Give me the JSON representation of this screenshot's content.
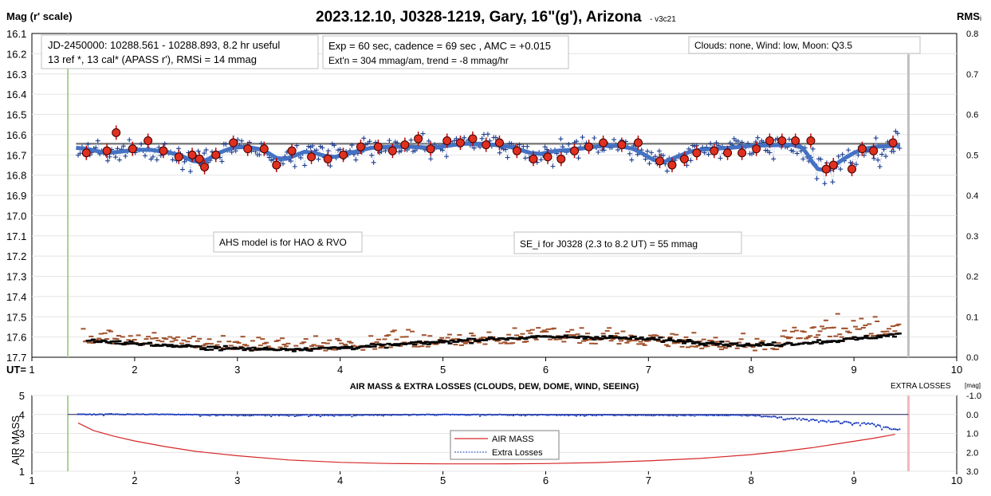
{
  "chart_data": [
    {
      "type": "scatter",
      "title": "2023.12.10, J0328-1219, Gary, 16\"(g'), Arizona",
      "title_suffix": "- v3c21",
      "ylabel": "Mag (r' scale)",
      "y2label": "RMS",
      "y2label_suffix": "i",
      "xlabel_prefix": "UT=",
      "xlim": [
        1,
        10
      ],
      "ylim": [
        16.1,
        17.7
      ],
      "y_reversed": true,
      "y2lim": [
        0.0,
        0.8
      ],
      "x_ticks": [
        "1",
        "2",
        "3",
        "4",
        "5",
        "6",
        "7",
        "8",
        "9",
        "10"
      ],
      "y_ticks": [
        "16.1",
        "16.2",
        "16.3",
        "16.4",
        "16.5",
        "16.6",
        "16.7",
        "16.8",
        "16.9",
        "17.0",
        "17.1",
        "17.2",
        "17.3",
        "17.4",
        "17.5",
        "17.6",
        "17.7"
      ],
      "y2_ticks": [
        "0.8",
        "0.7",
        "0.6",
        "0.5",
        "0.4",
        "0.3",
        "0.2",
        "0.1",
        "0.0"
      ],
      "reference_level": 16.645,
      "observation_start_ut": 1.35,
      "observation_end_ut": 9.53,
      "annotations": {
        "jd": [
          "JD-2450000: 10288.561 - 10288.893, 8.2 hr useful",
          "13 ref *, 13 cal*  (APASS r'), RMSi = 14 mmag"
        ],
        "exposure": [
          "Exp = 60 sec, cadence = 69 sec , AMC = +0.015",
          "Ext'n = 304 mmag/am, trend = -8 mmag/hr"
        ],
        "conditions": "Clouds: none, Wind:  low,  Moon:  Q3.5",
        "model": "AHS model is for HAO & RVO",
        "se": "SE_i for J0328 (2.3 to 8.2 UT) = 55 mmag"
      },
      "series": [
        {
          "kind": "binned_magnitude",
          "x": [
            1.53,
            1.73,
            1.82,
            1.98,
            2.13,
            2.28,
            2.43,
            2.56,
            2.63,
            2.68,
            2.79,
            2.96,
            3.1,
            3.26,
            3.38,
            3.53,
            3.72,
            3.88,
            4.03,
            4.2,
            4.37,
            4.51,
            4.63,
            4.76,
            4.88,
            5.04,
            5.17,
            5.29,
            5.42,
            5.55,
            5.72,
            5.88,
            6.02,
            6.15,
            6.28,
            6.42,
            6.56,
            6.74,
            6.9,
            7.11,
            7.23,
            7.35,
            7.47,
            7.64,
            7.77,
            7.91,
            8.05,
            8.18,
            8.3,
            8.43,
            8.58,
            8.73,
            8.8,
            8.98,
            9.08,
            9.19,
            9.38
          ],
          "y": [
            16.69,
            16.68,
            16.59,
            16.67,
            16.63,
            16.68,
            16.71,
            16.7,
            16.72,
            16.76,
            16.7,
            16.64,
            16.67,
            16.67,
            16.75,
            16.68,
            16.71,
            16.72,
            16.7,
            16.66,
            16.66,
            16.68,
            16.65,
            16.62,
            16.67,
            16.63,
            16.64,
            16.62,
            16.65,
            16.64,
            16.68,
            16.72,
            16.71,
            16.72,
            16.68,
            16.66,
            16.64,
            16.65,
            16.64,
            16.73,
            16.75,
            16.72,
            16.69,
            16.68,
            16.69,
            16.69,
            16.67,
            16.63,
            16.63,
            16.63,
            16.63,
            16.77,
            16.75,
            16.77,
            16.67,
            16.68,
            16.64
          ]
        },
        {
          "kind": "ahs_model",
          "x": [
            1.43,
            1.55,
            1.65,
            1.73,
            1.85,
            2.0,
            2.15,
            2.3,
            2.43,
            2.5,
            2.57,
            2.65,
            2.72,
            2.82,
            2.95,
            3.08,
            3.2,
            3.3,
            3.38,
            3.47,
            3.55,
            3.65,
            3.75,
            3.85,
            3.95,
            4.1,
            4.3,
            4.5,
            4.7,
            4.9,
            5.05,
            5.2,
            5.35,
            5.5,
            5.65,
            5.75,
            5.85,
            5.95,
            6.1,
            6.25,
            6.4,
            6.55,
            6.7,
            6.85,
            6.95,
            7.05,
            7.15,
            7.25,
            7.4,
            7.6,
            7.8,
            8.0,
            8.2,
            8.4,
            8.5,
            8.55,
            8.6,
            8.65,
            8.72,
            8.8,
            8.9,
            9.0,
            9.1,
            9.25,
            9.45
          ],
          "y": [
            16.665,
            16.672,
            16.683,
            16.69,
            16.685,
            16.675,
            16.675,
            16.685,
            16.7,
            16.715,
            16.73,
            16.735,
            16.72,
            16.69,
            16.665,
            16.66,
            16.67,
            16.69,
            16.715,
            16.72,
            16.705,
            16.685,
            16.69,
            16.705,
            16.71,
            16.69,
            16.665,
            16.66,
            16.66,
            16.665,
            16.655,
            16.645,
            16.645,
            16.65,
            16.66,
            16.675,
            16.69,
            16.695,
            16.68,
            16.675,
            16.665,
            16.655,
            16.655,
            16.67,
            16.695,
            16.725,
            16.735,
            16.715,
            16.685,
            16.67,
            16.665,
            16.655,
            16.652,
            16.65,
            16.665,
            16.7,
            16.74,
            16.77,
            16.775,
            16.755,
            16.72,
            16.69,
            16.67,
            16.658,
            16.655
          ]
        }
      ],
      "series_noise": {
        "individual_magnitude_points": "about 430 points, one per 69 sec cadence, scatter ~0.05 mag around the model",
        "rms_points_scale": "right axis RMS 0.0 to 0.2"
      }
    },
    {
      "type": "line",
      "title": "AIR MASS & EXTRA LOSSES (CLOUDS, DEW, DOME, WIND, SEEING)",
      "ylabel": "AIR MASS",
      "y2label": "EXTRA LOSSES",
      "y2label_unit": "[mag]",
      "xlim": [
        1,
        10
      ],
      "ylim": [
        1,
        5
      ],
      "y2lim": [
        -1.0,
        3.0
      ],
      "x_ticks": [
        "1",
        "2",
        "3",
        "4",
        "5",
        "6",
        "7",
        "8",
        "9",
        "10"
      ],
      "y_ticks": [
        "5",
        "4",
        "3",
        "2",
        "1"
      ],
      "y2_ticks": [
        "-1.0",
        "0.0",
        "1.0",
        "2.0",
        "3.0"
      ],
      "legend": [
        "AIR MASS",
        "Extra Losses"
      ],
      "series": [
        {
          "name": "AIR MASS",
          "x": [
            1.45,
            1.6,
            1.8,
            2.0,
            2.3,
            2.6,
            3.0,
            3.5,
            4.0,
            4.5,
            5.0,
            5.5,
            6.0,
            6.5,
            7.0,
            7.5,
            8.0,
            8.3,
            8.6,
            8.9,
            9.2,
            9.4
          ],
          "y": [
            3.55,
            3.15,
            2.85,
            2.6,
            2.3,
            2.05,
            1.82,
            1.6,
            1.47,
            1.41,
            1.39,
            1.39,
            1.41,
            1.46,
            1.55,
            1.68,
            1.88,
            2.05,
            2.25,
            2.5,
            2.75,
            2.95
          ]
        },
        {
          "name": "Extra Losses",
          "x": [
            1.45,
            2.0,
            3.0,
            4.0,
            5.0,
            6.0,
            7.0,
            8.0,
            8.4,
            8.8,
            9.2,
            9.4
          ],
          "y": [
            0.0,
            0.0,
            0.05,
            0.05,
            0.02,
            0.03,
            0.05,
            0.05,
            0.2,
            0.35,
            0.5,
            0.8
          ]
        }
      ]
    }
  ]
}
